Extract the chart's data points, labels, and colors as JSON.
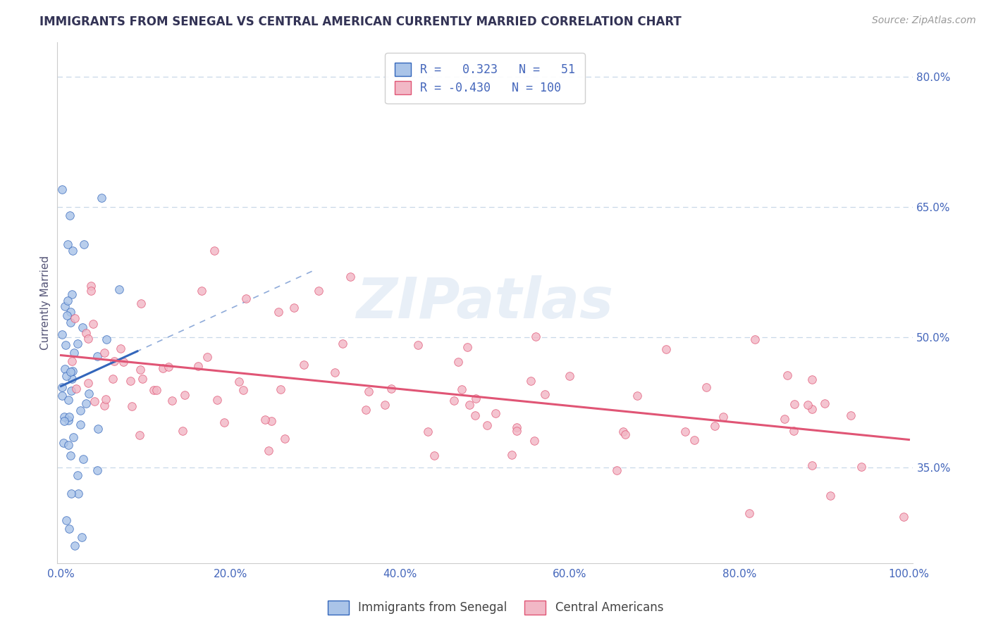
{
  "title": "IMMIGRANTS FROM SENEGAL VS CENTRAL AMERICAN CURRENTLY MARRIED CORRELATION CHART",
  "source": "Source: ZipAtlas.com",
  "ylabel": "Currently Married",
  "watermark": "ZIPatlas",
  "r_senegal": 0.323,
  "n_senegal": 51,
  "r_central": -0.43,
  "n_central": 100,
  "xlim": [
    -0.005,
    1.005
  ],
  "ylim": [
    0.24,
    0.84
  ],
  "xticks": [
    0.0,
    0.2,
    0.4,
    0.6,
    0.8,
    1.0
  ],
  "xticklabels": [
    "0.0%",
    "20.0%",
    "40.0%",
    "60.0%",
    "80.0%",
    "100.0%"
  ],
  "yticks": [
    0.35,
    0.5,
    0.65,
    0.8
  ],
  "yticklabels": [
    "35.0%",
    "50.0%",
    "65.0%",
    "80.0%"
  ],
  "color_senegal": "#aac4e8",
  "color_central": "#f2b8c6",
  "line_color_senegal": "#3366bb",
  "line_color_central": "#e05575",
  "legend_label_senegal": "Immigrants from Senegal",
  "legend_label_central": "Central Americans",
  "background": "#ffffff",
  "grid_color": "#c8d8e8",
  "title_color": "#333355",
  "axis_text_color": "#4466bb",
  "bottom_text_color": "#444444"
}
